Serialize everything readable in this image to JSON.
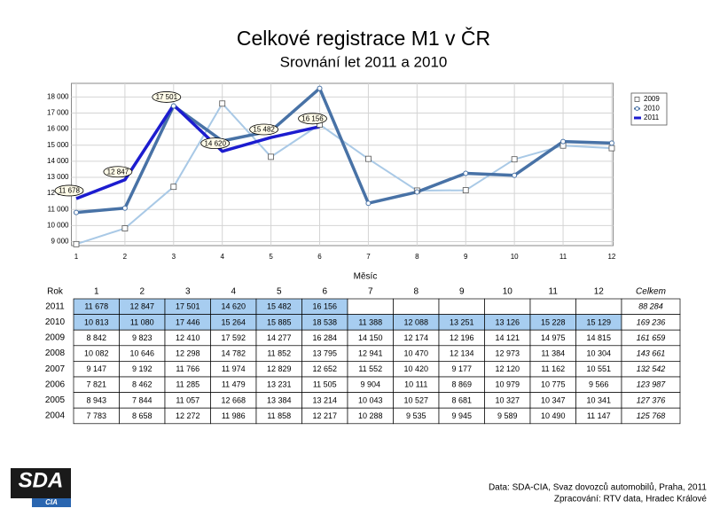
{
  "chart_data": {
    "type": "line",
    "title": "Celkové registrace M1 v ČR",
    "subtitle": "Srovnání let 2011 a 2010",
    "xlabel": "Měsíc",
    "x": [
      1,
      2,
      3,
      4,
      5,
      6,
      7,
      8,
      9,
      10,
      11,
      12
    ],
    "xlim": [
      0.9,
      12.03
    ],
    "xticks": [
      1,
      2,
      3,
      4,
      5,
      6,
      7,
      8,
      9,
      10,
      11,
      12
    ],
    "ylim": [
      8750,
      18850
    ],
    "yticks": [
      {
        "value": 9000,
        "label": "9 000"
      },
      {
        "value": 10000,
        "label": "10 000"
      },
      {
        "value": 11000,
        "label": "11 000"
      },
      {
        "value": 12000,
        "label": "12 000"
      },
      {
        "value": 13000,
        "label": "13 000"
      },
      {
        "value": 14000,
        "label": "14 000"
      },
      {
        "value": 15000,
        "label": "15 000"
      },
      {
        "value": 16000,
        "label": "16 000"
      },
      {
        "value": 17000,
        "label": "17 000"
      },
      {
        "value": 18000,
        "label": "18 000"
      }
    ],
    "grid": true,
    "legend": "right",
    "series": [
      {
        "name": "2009",
        "color": "#a9c9e6",
        "marker": "square",
        "values": [
          8842,
          9823,
          12410,
          17592,
          14277,
          16284,
          14150,
          12174,
          12196,
          14121,
          14975,
          14815
        ]
      },
      {
        "name": "2010",
        "color": "#4872a6",
        "marker": "circle",
        "values": [
          10813,
          11080,
          17446,
          15264,
          15885,
          18538,
          11388,
          12088,
          13251,
          13126,
          15228,
          15129
        ]
      },
      {
        "name": "2011",
        "color": "#1c1ccf",
        "marker": "none",
        "values": [
          11678,
          12847,
          17501,
          14620,
          15482,
          16156,
          null,
          null,
          null,
          null,
          null,
          null
        ],
        "value_labels": [
          "11 678",
          "12 847",
          "17 501",
          "14 620",
          "15 482",
          "16 156",
          null,
          null,
          null,
          null,
          null,
          null
        ]
      }
    ]
  },
  "table": {
    "header": [
      "Rok",
      "1",
      "2",
      "3",
      "4",
      "5",
      "6",
      "7",
      "8",
      "9",
      "10",
      "11",
      "12",
      "Celkem"
    ],
    "rows": [
      {
        "year": "2011",
        "highlight": true,
        "cells": [
          "11 678",
          "12 847",
          "17 501",
          "14 620",
          "15 482",
          "16 156"
        ],
        "total": "88 284"
      },
      {
        "year": "2010",
        "highlight": true,
        "cells": [
          "10 813",
          "11 080",
          "17 446",
          "15 264",
          "15 885",
          "18 538",
          "11 388",
          "12 088",
          "13 251",
          "13 126",
          "15 228",
          "15 129"
        ],
        "total": "169 236"
      },
      {
        "year": "2009",
        "highlight": false,
        "cells": [
          "8 842",
          "9 823",
          "12 410",
          "17 592",
          "14 277",
          "16 284",
          "14 150",
          "12 174",
          "12 196",
          "14 121",
          "14 975",
          "14 815"
        ],
        "total": "161 659"
      },
      {
        "year": "2008",
        "highlight": false,
        "cells": [
          "10 082",
          "10 646",
          "12 298",
          "14 782",
          "11 852",
          "13 795",
          "12 941",
          "10 470",
          "12 134",
          "12 973",
          "11 384",
          "10 304"
        ],
        "total": "143 661"
      },
      {
        "year": "2007",
        "highlight": false,
        "cells": [
          "9 147",
          "9 192",
          "11 766",
          "11 974",
          "12 829",
          "12 652",
          "11 552",
          "10 420",
          "9 177",
          "12 120",
          "11 162",
          "10 551"
        ],
        "total": "132 542"
      },
      {
        "year": "2006",
        "highlight": false,
        "cells": [
          "7 821",
          "8 462",
          "11 285",
          "11 479",
          "13 231",
          "11 505",
          "9 904",
          "10 111",
          "8 869",
          "10 979",
          "10 775",
          "9 566"
        ],
        "total": "123 987"
      },
      {
        "year": "2005",
        "highlight": false,
        "cells": [
          "8 943",
          "7 844",
          "11 057",
          "12 668",
          "13 384",
          "13 214",
          "10 043",
          "10 527",
          "8 681",
          "10 327",
          "10 347",
          "10 341"
        ],
        "total": "127 376"
      },
      {
        "year": "2004",
        "highlight": false,
        "cells": [
          "7 783",
          "8 658",
          "12 272",
          "11 986",
          "11 858",
          "12 217",
          "10 288",
          "9 535",
          "9 945",
          "9 589",
          "10 490",
          "11 147"
        ],
        "total": "125 768"
      }
    ]
  },
  "logo": {
    "name": "SDA",
    "sub": "CIA"
  },
  "footer": [
    "Data: SDA-CIA, Svaz dovozců automobilů, Praha, 2011",
    "Zpracování: RTV data, Hradec Králové"
  ]
}
